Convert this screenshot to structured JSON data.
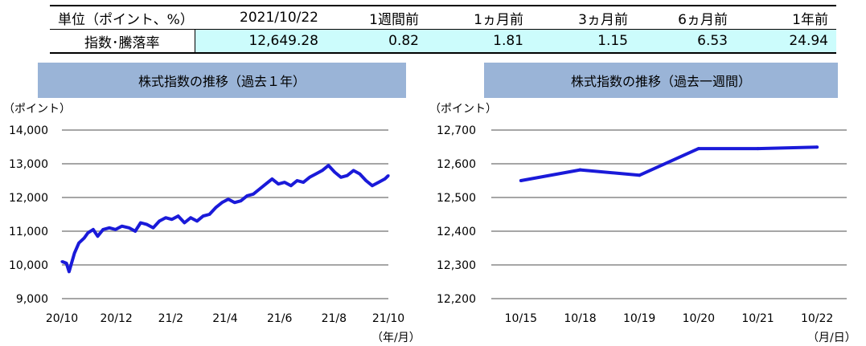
{
  "table": {
    "header": [
      "単位（ポイント、%）",
      "2021/10/22",
      "1週間前",
      "1ヵ月前",
      "3ヵ月前",
      "6ヵ月前",
      "1年前"
    ],
    "row_label": "指数･騰落率",
    "values": [
      "12,649.28",
      "0.82",
      "1.81",
      "1.15",
      "6.53",
      "24.94"
    ]
  },
  "colors": {
    "line": "#1a1ad9",
    "title_bg": "#9ab4d7",
    "value_bg": "#ccfcfc",
    "grid": "#a6a6a6"
  },
  "chart_data": [
    {
      "type": "line",
      "title": "株式指数の推移（過去１年）",
      "ylabel": "（ポイント）",
      "xlabel": "（年/月）",
      "ylim": [
        9000,
        14000
      ],
      "yticks": [
        "14,000",
        "13,000",
        "12,000",
        "11,000",
        "10,000",
        "9,000"
      ],
      "xticks": [
        "20/10",
        "20/12",
        "21/2",
        "21/4",
        "21/6",
        "21/8",
        "21/10"
      ],
      "series": [
        {
          "x": [
            "2020/10/22",
            "2020/10/27",
            "2020/10/30",
            "2020/11/05",
            "2020/11/10",
            "2020/11/16",
            "2020/11/20",
            "2020/11/26",
            "2020/12/01",
            "2020/12/07",
            "2020/12/14",
            "2020/12/21",
            "2020/12/28",
            "2021/01/05",
            "2021/01/12",
            "2021/01/18",
            "2021/01/25",
            "2021/02/01",
            "2021/02/08",
            "2021/02/15",
            "2021/02/22",
            "2021/03/01",
            "2021/03/08",
            "2021/03/15",
            "2021/03/22",
            "2021/03/29",
            "2021/04/05",
            "2021/04/12",
            "2021/04/19",
            "2021/04/26",
            "2021/05/03",
            "2021/05/10",
            "2021/05/17",
            "2021/05/24",
            "2021/05/31",
            "2021/06/07",
            "2021/06/14",
            "2021/06/21",
            "2021/06/28",
            "2021/07/05",
            "2021/07/12",
            "2021/07/19",
            "2021/07/26",
            "2021/08/02",
            "2021/08/09",
            "2021/08/16",
            "2021/08/23",
            "2021/08/30",
            "2021/09/06",
            "2021/09/13",
            "2021/09/20",
            "2021/09/27",
            "2021/10/04",
            "2021/10/11",
            "2021/10/18",
            "2021/10/22"
          ],
          "values": [
            10100,
            10050,
            9800,
            10350,
            10650,
            10800,
            10950,
            11050,
            10850,
            11050,
            11100,
            11050,
            11150,
            11100,
            11000,
            11250,
            11200,
            11100,
            11300,
            11400,
            11350,
            11450,
            11250,
            11400,
            11300,
            11450,
            11500,
            11700,
            11850,
            11950,
            11850,
            11900,
            12050,
            12100,
            12250,
            12400,
            12550,
            12400,
            12450,
            12350,
            12500,
            12450,
            12600,
            12700,
            12800,
            12950,
            12750,
            12600,
            12650,
            12800,
            12700,
            12500,
            12350,
            12450,
            12550,
            12650
          ]
        }
      ]
    },
    {
      "type": "line",
      "title": "株式指数の推移（過去一週間）",
      "ylabel": "（ポイント）",
      "xlabel": "（月/日）",
      "ylim": [
        12200,
        12700
      ],
      "yticks": [
        "12,700",
        "12,600",
        "12,500",
        "12,400",
        "12,300",
        "12,200"
      ],
      "categories": [
        "10/15",
        "10/18",
        "10/19",
        "10/20",
        "10/21",
        "10/22"
      ],
      "series": [
        {
          "values": [
            12550,
            12582,
            12566,
            12645,
            12645,
            12649.28
          ]
        }
      ]
    }
  ]
}
